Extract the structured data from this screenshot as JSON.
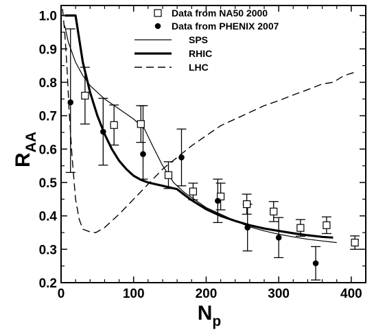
{
  "chart_data": {
    "type": "scatter",
    "xlabel": {
      "main": "N",
      "sub": "p"
    },
    "ylabel": {
      "main": "R",
      "sub": "AA"
    },
    "xlim": [
      0,
      420
    ],
    "ylim": [
      0.2,
      1.03
    ],
    "x_ticks": [
      0,
      100,
      200,
      300,
      400
    ],
    "y_ticks": [
      0.2,
      0.3,
      0.4,
      0.5,
      0.6,
      0.7,
      0.8,
      0.9,
      1.0
    ],
    "x_tick_labels": [
      "0",
      "100",
      "200",
      "300",
      "400"
    ],
    "y_tick_labels": [
      "0.2",
      "0.3",
      "0.4",
      "0.5",
      "0.6",
      "0.7",
      "0.8",
      "0.9",
      "1.0"
    ],
    "legend_position": "top-right",
    "grid": false,
    "series": [
      {
        "name": "Data from NA50 2000",
        "kind": "points",
        "marker": "open-square",
        "x": [
          33,
          73,
          110,
          148,
          182,
          220,
          256,
          293,
          330,
          366,
          405
        ],
        "y": [
          0.76,
          0.672,
          0.675,
          0.522,
          0.473,
          0.458,
          0.435,
          0.413,
          0.364,
          0.372,
          0.32
        ],
        "err_low": [
          0.085,
          0.06,
          0.055,
          0.04,
          0.025,
          0.04,
          0.03,
          0.03,
          0.025,
          0.025,
          0.02
        ],
        "err_high": [
          0.085,
          0.06,
          0.055,
          0.04,
          0.025,
          0.04,
          0.03,
          0.03,
          0.025,
          0.025,
          0.02
        ]
      },
      {
        "name": "Data from PHENIX 2007",
        "kind": "points",
        "marker": "filled-circle",
        "x": [
          13,
          58,
          113,
          166,
          216,
          257,
          300,
          351
        ],
        "y": [
          0.74,
          0.652,
          0.585,
          0.575,
          0.445,
          0.365,
          0.335,
          0.258
        ],
        "err_low": [
          0.21,
          0.1,
          0.075,
          0.085,
          0.065,
          0.07,
          0.06,
          0.05
        ],
        "err_high": [
          0.22,
          0.1,
          0.145,
          0.085,
          0.065,
          0.07,
          0.06,
          0.05
        ]
      },
      {
        "name": "SPS",
        "kind": "line",
        "style": "thin",
        "x": [
          5,
          10,
          20,
          30,
          40,
          60,
          80,
          100,
          115,
          125,
          140,
          155,
          170,
          180,
          200,
          220,
          240,
          260,
          280,
          300,
          320,
          340,
          360,
          380
        ],
        "y": [
          0.97,
          0.92,
          0.86,
          0.82,
          0.79,
          0.75,
          0.72,
          0.69,
          0.66,
          0.615,
          0.55,
          0.5,
          0.47,
          0.455,
          0.425,
          0.405,
          0.385,
          0.367,
          0.355,
          0.345,
          0.337,
          0.33,
          0.325,
          0.32
        ]
      },
      {
        "name": "RHIC",
        "kind": "line",
        "style": "thick",
        "x": [
          5,
          20,
          25,
          30,
          40,
          50,
          60,
          70,
          80,
          90,
          100,
          110,
          120,
          130,
          140,
          150,
          160,
          170,
          180,
          200,
          220,
          240,
          260,
          280,
          300,
          320,
          340,
          360,
          375
        ],
        "y": [
          1.0,
          1.0,
          0.93,
          0.86,
          0.77,
          0.7,
          0.645,
          0.6,
          0.565,
          0.54,
          0.52,
          0.508,
          0.5,
          0.495,
          0.49,
          0.485,
          0.48,
          0.463,
          0.447,
          0.42,
          0.4,
          0.385,
          0.372,
          0.362,
          0.355,
          0.348,
          0.342,
          0.337,
          0.335
        ]
      },
      {
        "name": "LHC",
        "kind": "line",
        "style": "dashed",
        "x": [
          2,
          5,
          8,
          11,
          15,
          20,
          25,
          30,
          40,
          48,
          60,
          80,
          100,
          120,
          140,
          160,
          180,
          200,
          220,
          240,
          260,
          280,
          300,
          320,
          340,
          360,
          375,
          390,
          405
        ],
        "y": [
          1.02,
          0.95,
          0.85,
          0.72,
          0.58,
          0.45,
          0.39,
          0.36,
          0.352,
          0.35,
          0.365,
          0.405,
          0.45,
          0.495,
          0.54,
          0.575,
          0.61,
          0.64,
          0.67,
          0.69,
          0.71,
          0.73,
          0.745,
          0.762,
          0.778,
          0.795,
          0.8,
          0.82,
          0.83
        ]
      }
    ]
  }
}
